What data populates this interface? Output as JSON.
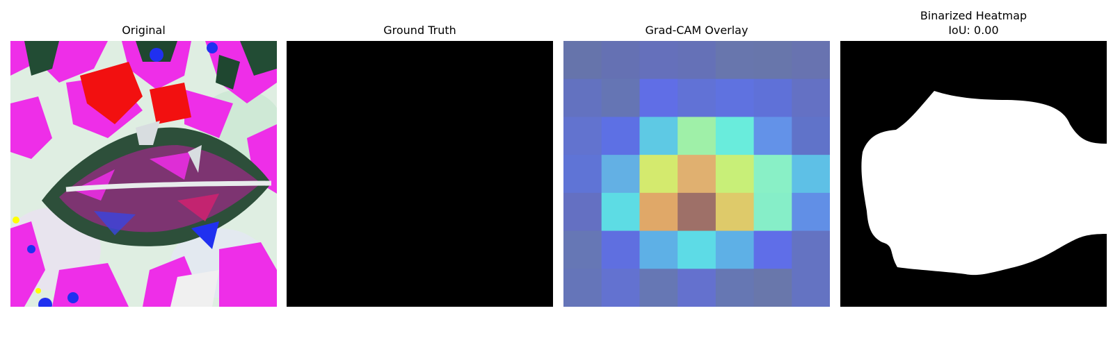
{
  "panels": {
    "original": {
      "title": "Original",
      "icon": "leaf-photo"
    },
    "ground_truth": {
      "title": "Ground Truth"
    },
    "gradcam": {
      "title": "Grad-CAM Overlay",
      "grid": [
        [
          "#6674ab",
          "#6571b3",
          "#6570bb",
          "#6571b7",
          "#6876ad",
          "#6876ab",
          "#6873b0"
        ],
        [
          "#6372c0",
          "#6575b4",
          "#606ee6",
          "#6172d6",
          "#5f72e0",
          "#5f71d8",
          "#6471c4"
        ],
        [
          "#6273cf",
          "#5d70e4",
          "#5ec9e4",
          "#9ff0a8",
          "#69ecdc",
          "#6392e8",
          "#6073c9"
        ],
        [
          "#5f74d6",
          "#63b0e4",
          "#d4ea6e",
          "#e0b070",
          "#c8ef78",
          "#89f0c6",
          "#5ec0e6"
        ],
        [
          "#6470c2",
          "#5ddce4",
          "#e0a868",
          "#9e7068",
          "#deca6a",
          "#86eec8",
          "#618fe6"
        ],
        [
          "#6677b5",
          "#5f6fe0",
          "#5eb0e6",
          "#5ddbe6",
          "#5eb0e6",
          "#5f6ee8",
          "#6473c2"
        ],
        [
          "#6575b9",
          "#6372d0",
          "#6677b4",
          "#6471ce",
          "#6677b3",
          "#6977ab",
          "#6473c2"
        ]
      ]
    },
    "binarized": {
      "title": "Binarized Heatmap",
      "subtitle": "IoU: 0.00"
    }
  }
}
